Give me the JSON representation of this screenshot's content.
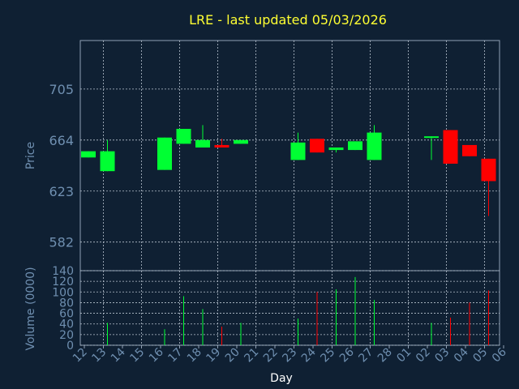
{
  "chart_data": {
    "type": "candlestick",
    "title": "LRE - last updated 05/03/2026",
    "x_label": "Day",
    "price_axis_label": "Price",
    "volume_axis_label": "Volume (0000)",
    "x_ticks": [
      "12",
      "13",
      "14",
      "15",
      "16",
      "17",
      "18",
      "19",
      "20",
      "21",
      "22",
      "23",
      "24",
      "25",
      "26",
      "27",
      "28",
      "01",
      "02",
      "03",
      "04",
      "05",
      "06"
    ],
    "price_ticks": [
      582,
      623,
      664,
      705
    ],
    "price_range": [
      559,
      744
    ],
    "volume_ticks": [
      0,
      20,
      40,
      60,
      80,
      100,
      120,
      140
    ],
    "volume_range": [
      0,
      140
    ],
    "grid": true,
    "colors": {
      "up": "#00ff33",
      "down": "#ff0000",
      "title": "#ffff33",
      "axis": "#6f8fb0",
      "background": "#0f2033"
    },
    "candles": [
      {
        "day": "12",
        "open": 650,
        "close": 655,
        "high": 655,
        "low": 650,
        "volume": 0
      },
      {
        "day": "13",
        "open": 639,
        "close": 655,
        "high": 664,
        "low": 639,
        "volume": 42
      },
      {
        "day": "16",
        "open": 640,
        "close": 666,
        "high": 666,
        "low": 640,
        "volume": 30
      },
      {
        "day": "17",
        "open": 661,
        "close": 673,
        "high": 673,
        "low": 661,
        "volume": 92
      },
      {
        "day": "18",
        "open": 658,
        "close": 664,
        "high": 676,
        "low": 658,
        "volume": 68
      },
      {
        "day": "19",
        "open": 660,
        "close": 658,
        "high": 665,
        "low": 658,
        "volume": 35
      },
      {
        "day": "20",
        "open": 661,
        "close": 664,
        "high": 664,
        "low": 661,
        "volume": 42
      },
      {
        "day": "23",
        "open": 648,
        "close": 662,
        "high": 670,
        "low": 648,
        "volume": 50
      },
      {
        "day": "24",
        "open": 665,
        "close": 654,
        "high": 665,
        "low": 654,
        "volume": 100
      },
      {
        "day": "25",
        "open": 656,
        "close": 658,
        "high": 658,
        "low": 654,
        "volume": 105
      },
      {
        "day": "26",
        "open": 656,
        "close": 663,
        "high": 663,
        "low": 656,
        "volume": 128
      },
      {
        "day": "27",
        "open": 648,
        "close": 670,
        "high": 676,
        "low": 648,
        "volume": 85
      },
      {
        "day": "02",
        "open": 666,
        "close": 667,
        "high": 667,
        "low": 648,
        "volume": 42
      },
      {
        "day": "03",
        "open": 672,
        "close": 645,
        "high": 672,
        "low": 645,
        "volume": 52
      },
      {
        "day": "04",
        "open": 660,
        "close": 651,
        "high": 660,
        "low": 651,
        "volume": 80
      },
      {
        "day": "05",
        "open": 649,
        "close": 631,
        "high": 649,
        "low": 603,
        "volume": 103
      }
    ]
  }
}
